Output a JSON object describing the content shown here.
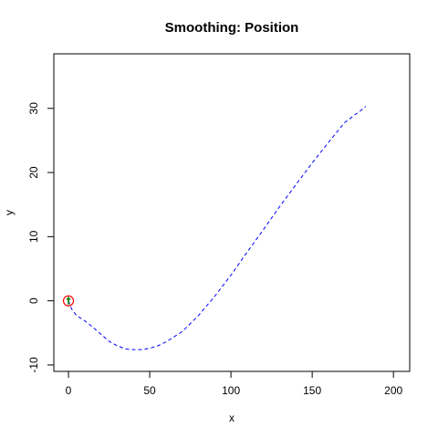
{
  "chart_data": {
    "type": "line",
    "title": "Smoothing: Position",
    "xlabel": "x",
    "ylabel": "y",
    "xlim": [
      -9,
      210
    ],
    "ylim": [
      -11,
      38.5
    ],
    "x_ticks": [
      0,
      50,
      100,
      150,
      200
    ],
    "y_ticks": [
      -10,
      0,
      10,
      20,
      30
    ],
    "x_tick_labels": [
      "0",
      "50",
      "100",
      "150",
      "200"
    ],
    "y_tick_labels": [
      "-10",
      "0",
      "10",
      "20",
      "30"
    ],
    "grid": false,
    "legend": "none",
    "series": [
      {
        "line_color": "#0000ff",
        "line_style": "dashed",
        "x": [
          0,
          2,
          5,
          10,
          15,
          20,
          25,
          30,
          35,
          40,
          45,
          50,
          55,
          60,
          70,
          80,
          90,
          100,
          110,
          120,
          130,
          140,
          150,
          160,
          170,
          180,
          183
        ],
        "y": [
          0,
          -1.3,
          -2.3,
          -3.1,
          -4.1,
          -5.2,
          -6.3,
          -7.0,
          -7.5,
          -7.6,
          -7.6,
          -7.4,
          -7.0,
          -6.4,
          -4.8,
          -2.3,
          0.7,
          4.0,
          7.6,
          11.1,
          14.7,
          18.1,
          21.5,
          24.7,
          27.8,
          29.7,
          30.3
        ]
      }
    ],
    "markers": [
      {
        "name": "start",
        "x": 0,
        "y": 0,
        "shape": "circle",
        "color": "#ff0000"
      },
      {
        "name": "start-arrow",
        "x": 0,
        "y": 0,
        "shape": "arrow-up",
        "color": "#008000"
      }
    ]
  }
}
